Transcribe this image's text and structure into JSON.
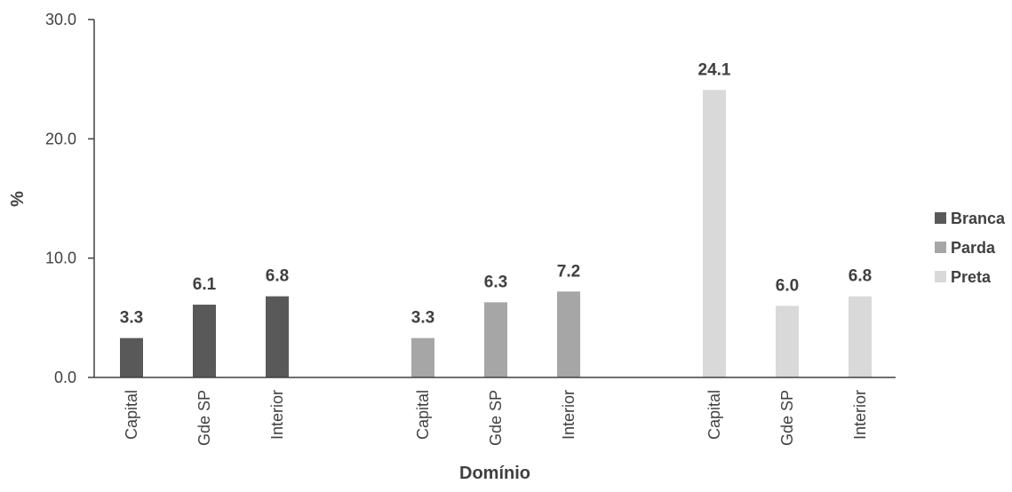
{
  "chart_data": {
    "type": "bar",
    "title": "",
    "xlabel": "Domínio",
    "ylabel": "%",
    "ylim": [
      0,
      30
    ],
    "yticks": [
      "0.0",
      "10.0",
      "20.0",
      "30.0"
    ],
    "categories": [
      "Capital",
      "Gde SP",
      "Interior"
    ],
    "grid": false,
    "legend_position": "right",
    "series": [
      {
        "name": "Branca",
        "color": "#595959",
        "values": [
          3.3,
          6.1,
          6.8
        ],
        "labels": [
          "3.3",
          "6.1",
          "6.8"
        ]
      },
      {
        "name": "Parda",
        "color": "#a6a6a6",
        "values": [
          3.3,
          6.3,
          7.2
        ],
        "labels": [
          "3.3",
          "6.3",
          "7.2"
        ]
      },
      {
        "name": "Preta",
        "color": "#d9d9d9",
        "values": [
          24.1,
          6.0,
          6.8
        ],
        "labels": [
          "24.1",
          "6.0",
          "6.8"
        ]
      }
    ]
  }
}
